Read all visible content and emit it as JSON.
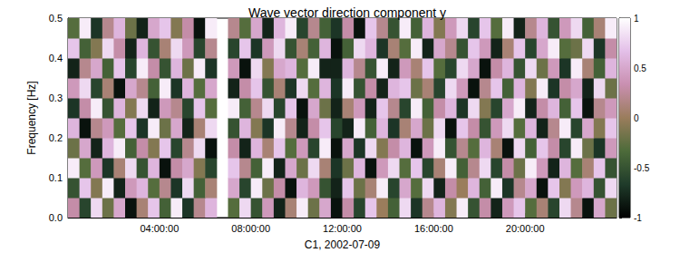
{
  "chart_data": {
    "type": "heatmap",
    "title": "Wave vector direction component y",
    "x_label": "C1, 2002-07-09",
    "y_label": "Frequency [Hz]",
    "x": [
      0.25,
      0.75,
      1.25,
      1.75,
      2.25,
      2.75,
      3.25,
      3.75,
      4.25,
      4.75,
      5.25,
      5.75,
      6.25,
      6.75,
      7.25,
      7.75,
      8.25,
      8.75,
      9.25,
      9.75,
      10.25,
      10.75,
      11.25,
      11.75,
      12.25,
      12.75,
      13.25,
      13.75,
      14.25,
      14.75,
      15.25,
      15.75,
      16.25,
      16.75,
      17.25,
      17.75,
      18.25,
      18.75,
      19.25,
      19.75,
      20.25,
      20.75,
      21.25,
      21.75,
      22.25,
      22.75,
      23.25,
      23.75
    ],
    "y": [
      0.025,
      0.075,
      0.125,
      0.175,
      0.225,
      0.275,
      0.325,
      0.375,
      0.425,
      0.475
    ],
    "cells": [
      [
        0.3,
        -0.6,
        0.8,
        -0.2,
        0.5,
        -0.9,
        0.1,
        0.7,
        -0.4,
        0.9,
        -0.7,
        0.2,
        0.6,
        null,
        -0.3,
        0.8,
        -0.5,
        0.4,
        -0.8,
        0.1,
        0.9,
        -0.2,
        0.5,
        -0.9,
        0.3,
        -0.6,
        0.7,
        0.0,
        -0.4,
        0.8,
        -0.7,
        0.2,
        0.6,
        -0.1,
        0.9,
        -0.5,
        0.3,
        -0.8,
        0.4,
        0.7,
        -0.3,
        0.1,
        -0.6,
        0.8,
        0.2,
        -0.9,
        0.5,
        -0.2
      ],
      [
        -0.5,
        0.7,
        -0.1,
        0.9,
        -0.8,
        0.4,
        0.6,
        -0.3,
        0.2,
        -0.7,
        0.8,
        -0.4,
        0.1,
        null,
        0.5,
        -0.6,
        0.9,
        -0.2,
        0.3,
        -0.9,
        0.6,
        0.4,
        -0.5,
        -0.8,
        0.7,
        -0.2,
        0.1,
        0.9,
        -0.6,
        0.5,
        -0.3,
        0.8,
        -0.8,
        0.3,
        0.0,
        0.6,
        -0.4,
        0.9,
        -0.7,
        0.2,
        0.5,
        -0.9,
        0.7,
        -0.1,
        0.4,
        0.6,
        -0.5,
        0.8
      ],
      [
        0.9,
        -0.3,
        0.4,
        -0.7,
        0.1,
        0.8,
        -0.5,
        0.6,
        -0.9,
        0.3,
        0.5,
        -0.1,
        -0.6,
        null,
        0.7,
        0.2,
        -0.4,
        0.9,
        -0.8,
        0.5,
        -0.2,
        0.8,
        0.1,
        -0.7,
        -0.2,
        0.6,
        -0.9,
        0.4,
        0.8,
        -0.3,
        0.7,
        -0.6,
        0.1,
        0.9,
        -0.4,
        0.2,
        0.8,
        -0.6,
        0.3,
        -0.2,
        0.9,
        0.4,
        -0.8,
        0.6,
        -0.3,
        0.1,
        0.7,
        -0.5
      ],
      [
        -0.2,
        0.5,
        -0.8,
        0.6,
        0.9,
        -0.4,
        0.3,
        -0.1,
        0.7,
        -0.6,
        0.2,
        0.8,
        -0.9,
        null,
        0.3,
        -0.8,
        0.6,
        0.1,
        0.7,
        -0.3,
        0.4,
        -0.6,
        0.9,
        -0.9,
        0.5,
        -0.7,
        0.8,
        -0.1,
        0.3,
        0.6,
        -0.9,
        0.4,
        0.9,
        -0.5,
        0.2,
        -0.3,
        0.6,
        0.1,
        -0.9,
        0.8,
        -0.4,
        0.7,
        0.3,
        -0.6,
        0.9,
        -0.2,
        -0.7,
        0.4
      ],
      [
        0.6,
        -0.9,
        0.2,
        0.4,
        -0.3,
        0.7,
        -0.7,
        0.9,
        -0.2,
        0.5,
        -0.8,
        0.1,
        0.8,
        null,
        -0.5,
        0.6,
        -0.1,
        -0.7,
        0.9,
        0.2,
        -0.8,
        0.3,
        0.7,
        -0.6,
        -0.8,
        0.9,
        -0.4,
        0.6,
        -0.7,
        0.1,
        0.5,
        -0.2,
        0.8,
        -0.9,
        0.7,
        0.3,
        -0.5,
        0.4,
        0.8,
        -0.3,
        0.6,
        -0.8,
        0.2,
        0.9,
        -0.6,
        0.5,
        -0.1,
        0.7
      ],
      [
        -0.7,
        0.3,
        0.9,
        -0.5,
        0.6,
        -0.1,
        0.8,
        -0.8,
        0.4,
        0.2,
        -0.6,
        0.7,
        -0.3,
        null,
        0.9,
        -0.4,
        0.2,
        0.8,
        -0.6,
        0.7,
        -0.9,
        0.5,
        -0.2,
        -0.8,
        0.1,
        0.4,
        -0.8,
        0.7,
        0.2,
        -0.6,
        0.9,
        -0.4,
        0.3,
        0.6,
        -0.7,
        0.8,
        -0.1,
        -0.6,
        0.5,
        0.9,
        -0.8,
        0.3,
        0.6,
        -0.4,
        0.7,
        -0.9,
        0.2,
        0.4
      ],
      [
        0.4,
        0.8,
        -0.6,
        0.1,
        -0.9,
        0.5,
        0.2,
        -0.4,
        0.9,
        -0.7,
        0.6,
        -0.3,
        0.5,
        null,
        -0.8,
        0.3,
        0.7,
        -0.5,
        0.1,
        -0.7,
        0.8,
        -0.3,
        0.6,
        -0.7,
        0.9,
        -0.5,
        0.3,
        -0.8,
        0.6,
        0.7,
        -0.2,
        0.1,
        -0.6,
        0.8,
        0.4,
        -0.9,
        0.2,
        0.7,
        -0.4,
        0.6,
        -0.1,
        0.9,
        -0.7,
        0.3,
        0.5,
        -0.8,
        0.8,
        -0.2
      ],
      [
        -0.8,
        0.2,
        0.5,
        -0.4,
        0.7,
        -0.6,
        0.9,
        0.3,
        -0.5,
        0.6,
        -0.2,
        0.9,
        -0.7,
        null,
        0.4,
        -0.9,
        0.8,
        -0.1,
        0.5,
        0.6,
        -0.3,
        0.9,
        -0.8,
        -0.8,
        0.6,
        0.2,
        -0.5,
        0.9,
        -0.8,
        0.4,
        0.1,
        0.7,
        -0.3,
        -0.6,
        0.8,
        0.5,
        -0.9,
        0.3,
        0.6,
        -0.5,
        0.8,
        -0.2,
        0.4,
        -0.7,
        0.9,
        0.1,
        -0.4,
        0.6
      ],
      [
        0.7,
        -0.4,
        -0.1,
        0.8,
        0.3,
        -0.8,
        0.6,
        -0.5,
        0.1,
        0.8,
        0.4,
        -0.6,
        0.2,
        null,
        -0.6,
        0.7,
        -0.7,
        0.4,
        0.8,
        -0.5,
        0.1,
        -0.4,
        0.6,
        -0.9,
        -0.4,
        0.8,
        0.6,
        -0.7,
        0.1,
        -0.3,
        0.9,
        -0.8,
        0.5,
        0.2,
        -0.5,
        0.7,
        0.4,
        -0.8,
        0.1,
        0.7,
        -0.6,
        0.5,
        0.9,
        -0.3,
        -0.2,
        0.8,
        -0.7,
        0.3
      ],
      [
        -0.3,
        0.9,
        -0.7,
        0.2,
        0.6,
        -0.2,
        -0.8,
        0.5,
        0.7,
        -0.1,
        0.3,
        -0.9,
        0.9,
        null,
        0.2,
        -0.3,
        0.5,
        -0.8,
        0.6,
        0.9,
        -0.6,
        0.2,
        -0.4,
        -0.7,
        0.3,
        -0.9,
        0.7,
        0.2,
        -0.5,
        0.9,
        -0.4,
        0.6,
        -0.1,
        0.4,
        0.8,
        -0.6,
        0.7,
        -0.3,
        0.9,
        -0.8,
        0.2,
        0.6,
        -0.5,
        0.4,
        0.8,
        -0.4,
        0.1,
        0.9
      ]
    ],
    "xlim": [
      0,
      24
    ],
    "xticks": [
      {
        "value": 4,
        "label": "04:00:00"
      },
      {
        "value": 8,
        "label": "08:00:00"
      },
      {
        "value": 12,
        "label": "12:00:00"
      },
      {
        "value": 16,
        "label": "16:00:00"
      },
      {
        "value": 20,
        "label": "20:00:00"
      }
    ],
    "ylim": [
      0,
      0.5
    ],
    "yticks": [
      {
        "value": 0,
        "label": "0.0"
      },
      0.1,
      0.2,
      0.3,
      0.4,
      0.5
    ],
    "colorbar": {
      "range": [
        -1,
        1
      ],
      "ticks": [
        -1,
        -0.5,
        0,
        0.5,
        1
      ]
    }
  }
}
